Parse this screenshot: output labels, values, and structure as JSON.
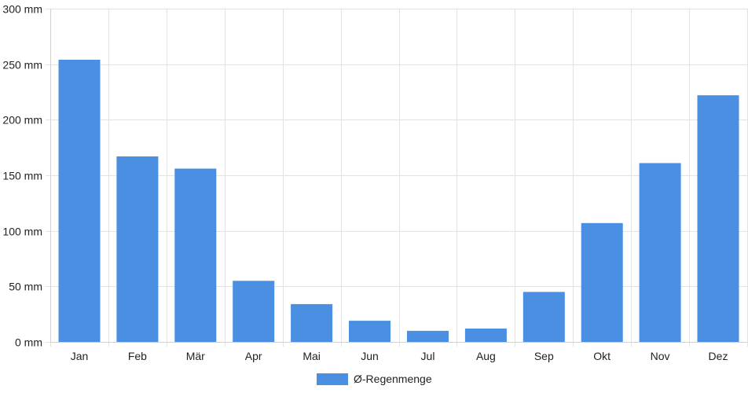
{
  "chart_data": {
    "type": "bar",
    "categories": [
      "Jan",
      "Feb",
      "Mär",
      "Apr",
      "Mai",
      "Jun",
      "Jul",
      "Aug",
      "Sep",
      "Okt",
      "Nov",
      "Dez"
    ],
    "series": [
      {
        "name": "Ø-Regenmenge",
        "values": [
          254,
          167,
          156,
          55,
          34,
          19,
          10,
          12,
          45,
          107,
          161,
          222
        ],
        "color": "#4a8fe2"
      }
    ],
    "ylim": [
      0,
      300
    ],
    "yticks": [
      0,
      50,
      100,
      150,
      200,
      250,
      300
    ],
    "ytick_labels": [
      "0 mm",
      "50 mm",
      "100 mm",
      "150 mm",
      "200 mm",
      "250 mm",
      "300 mm"
    ],
    "grid": true,
    "legend_position": "bottom-center"
  }
}
